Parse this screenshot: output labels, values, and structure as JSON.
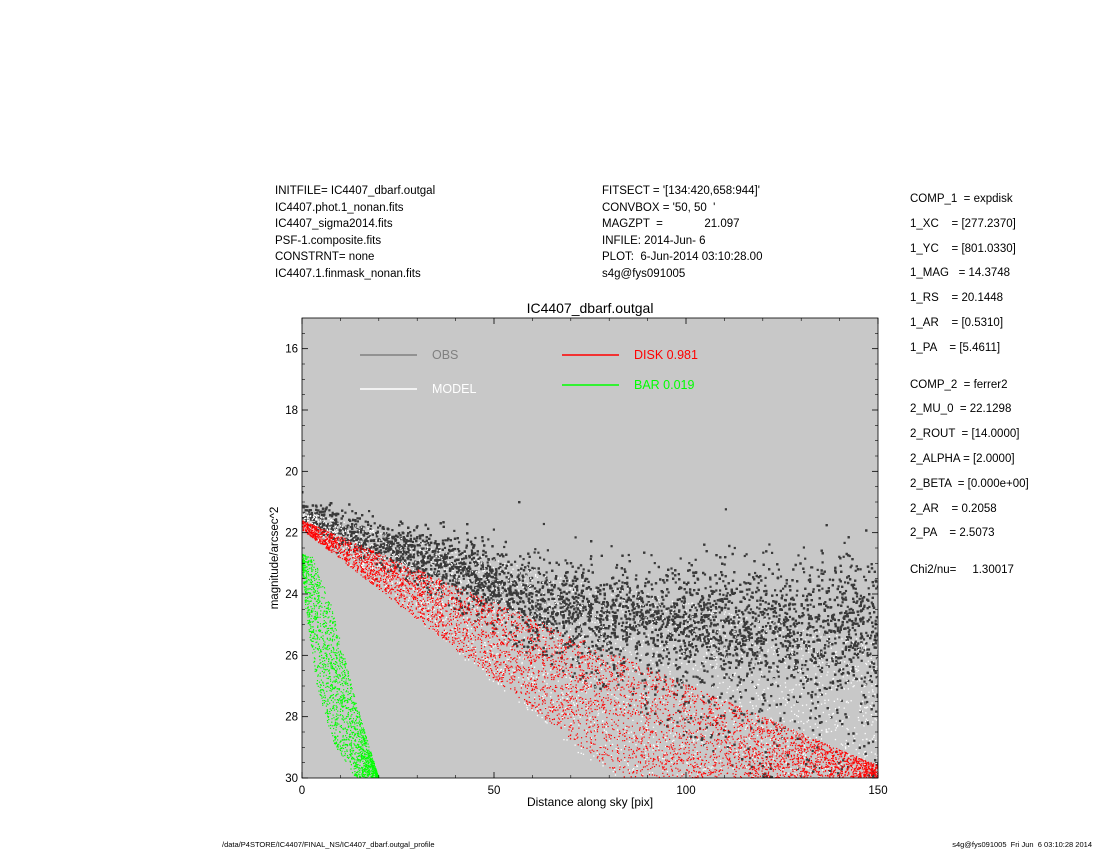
{
  "header_left": [
    "INITFILE= IC4407_dbarf.outgal",
    "IC4407.phot.1_nonan.fits",
    "IC4407_sigma2014.fits",
    "PSF-1.composite.fits",
    "CONSTRNT= none",
    "IC4407.1.finmask_nonan.fits"
  ],
  "header_mid": [
    "FITSECT = '[134:420,658:944]'",
    "CONVBOX = '50, 50  '",
    "MAGZPT  =             21.097",
    "INFILE: 2014-Jun- 6",
    "PLOT:  6-Jun-2014 03:10:28.00",
    "s4g@fys091005"
  ],
  "header_right": {
    "comp1": [
      "COMP_1  = expdisk",
      "1_XC    = [277.2370]",
      "1_YC    = [801.0330]",
      "1_MAG   = 14.3748",
      "1_RS    = 20.1448",
      "1_AR    = [0.5310]",
      "1_PA    = [5.4611]"
    ],
    "comp2": [
      "COMP_2  = ferrer2",
      "2_MU_0  = 22.1298",
      "2_ROUT  = [14.0000]",
      "2_ALPHA = [2.0000]",
      "2_BETA  = [0.000e+00]",
      "2_AR    = 0.2058",
      "2_PA    = 2.5073"
    ],
    "chi": "Chi2/nu=     1.30017"
  },
  "footer": {
    "left": "/data/P4STORE/IC4407/FINAL_NS/IC4407_dbarf.outgal_profile",
    "right": "s4g@fys091005  Fri Jun  6 03:10:28 2014"
  },
  "chart_data": {
    "type": "scatter",
    "title": "IC4407_dbarf.outgal",
    "xlabel": "Distance along sky [pix]",
    "ylabel": "magnitude/arcsec^2",
    "xlim": [
      0,
      150
    ],
    "ylim": [
      30,
      15
    ],
    "y_inverted": true,
    "x_ticks": [
      0,
      50,
      100,
      150
    ],
    "y_ticks": [
      16,
      18,
      20,
      22,
      24,
      26,
      28,
      30
    ],
    "background": "#c8c8c8",
    "legend": [
      {
        "label": "OBS",
        "color": "#808080"
      },
      {
        "label": "MODEL",
        "color": "#ffffff"
      },
      {
        "label": "DISK  0.981",
        "color": "#ff0000"
      },
      {
        "label": "BAR  0.019",
        "color": "#00ff00"
      }
    ],
    "series": [
      {
        "name": "OBS",
        "color": "#3a3a3a",
        "description_points": [
          [
            0,
            21.3
          ],
          [
            20,
            22.3
          ],
          [
            40,
            23.0
          ],
          [
            60,
            24.0
          ],
          [
            80,
            24.5
          ],
          [
            100,
            24.8
          ],
          [
            120,
            25.0
          ],
          [
            150,
            25.1
          ]
        ],
        "faint_lower_edge": [
          [
            0,
            21.7
          ],
          [
            30,
            23.8
          ],
          [
            60,
            26.0
          ],
          [
            90,
            28.0
          ],
          [
            115,
            29.8
          ]
        ]
      },
      {
        "name": "MODEL",
        "color": "#ffffff",
        "upper_edge": [
          [
            0,
            21.3
          ],
          [
            40,
            22.6
          ],
          [
            150,
            25.6
          ]
        ],
        "lower_edge": [
          [
            0,
            21.8
          ],
          [
            80,
            30.0
          ]
        ]
      },
      {
        "name": "DISK  0.981",
        "color": "#ff0000",
        "upper_edge": [
          [
            0,
            21.6
          ],
          [
            150,
            29.6
          ]
        ],
        "lower_edge": [
          [
            0,
            21.9
          ],
          [
            83,
            30.0
          ]
        ]
      },
      {
        "name": "BAR  0.019",
        "color": "#00ff00",
        "upper_edge": [
          [
            0,
            22.7
          ],
          [
            3,
            22.8
          ],
          [
            8,
            24.5
          ],
          [
            14,
            27.5
          ],
          [
            20,
            30.0
          ]
        ],
        "lower_edge": [
          [
            0,
            22.9
          ],
          [
            1,
            24.5
          ],
          [
            4,
            27.0
          ],
          [
            8,
            28.8
          ],
          [
            14,
            30.0
          ]
        ]
      }
    ]
  }
}
